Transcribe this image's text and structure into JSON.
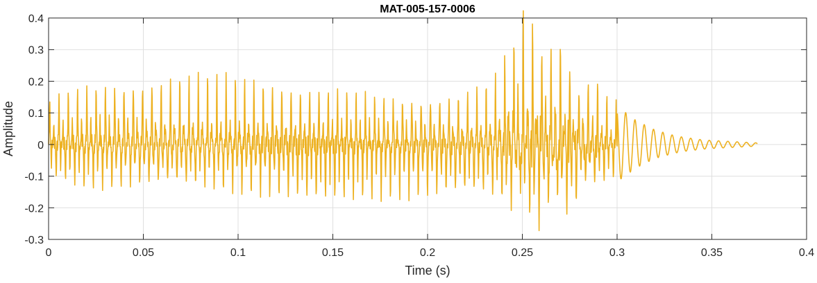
{
  "chart_data": {
    "type": "line",
    "title": "MAT-005-157-0006",
    "xlabel": "Time (s)",
    "ylabel": "Amplitude",
    "xlim": [
      0,
      0.4
    ],
    "ylim": [
      -0.3,
      0.4
    ],
    "xticks": [
      0,
      0.05,
      0.1,
      0.15,
      0.2,
      0.25,
      0.3,
      0.35,
      0.4
    ],
    "xtick_labels": [
      "0",
      "0.05",
      "0.1",
      "0.15",
      "0.2",
      "0.25",
      "0.3",
      "0.35",
      "0.4"
    ],
    "yticks": [
      -0.3,
      -0.2,
      -0.1,
      0,
      0.1,
      0.2,
      0.3,
      0.4
    ],
    "ytick_labels": [
      "-0.3",
      "-0.2",
      "-0.1",
      "0",
      "0.1",
      "0.2",
      "0.3",
      "0.4"
    ],
    "grid": true,
    "legend": "none",
    "series_color": "#EDB120",
    "signal": {
      "duration": 0.374,
      "sample_rate": 6000,
      "period": 0.0049,
      "pos_peak_envelope": [
        [
          0,
          0.14
        ],
        [
          0.01,
          0.17
        ],
        [
          0.03,
          0.19
        ],
        [
          0.065,
          0.2
        ],
        [
          0.1,
          0.19
        ],
        [
          0.15,
          0.17
        ],
        [
          0.18,
          0.15
        ],
        [
          0.2,
          0.155
        ],
        [
          0.22,
          0.16
        ],
        [
          0.235,
          0.19
        ],
        [
          0.247,
          0.36
        ],
        [
          0.26,
          0.33
        ],
        [
          0.27,
          0.28
        ],
        [
          0.28,
          0.2
        ],
        [
          0.29,
          0.17
        ],
        [
          0.3,
          0.13
        ],
        [
          0.31,
          0.08
        ],
        [
          0.32,
          0.05
        ],
        [
          0.33,
          0.03
        ],
        [
          0.345,
          0.015
        ],
        [
          0.36,
          0.01
        ],
        [
          0.374,
          0.005
        ]
      ],
      "neg_peak_envelope": [
        [
          0,
          -0.1
        ],
        [
          0.02,
          -0.14
        ],
        [
          0.06,
          -0.14
        ],
        [
          0.1,
          -0.15
        ],
        [
          0.14,
          -0.18
        ],
        [
          0.17,
          -0.16
        ],
        [
          0.2,
          -0.17
        ],
        [
          0.23,
          -0.17
        ],
        [
          0.245,
          -0.2
        ],
        [
          0.255,
          -0.23
        ],
        [
          0.27,
          -0.22
        ],
        [
          0.28,
          -0.18
        ],
        [
          0.29,
          -0.14
        ],
        [
          0.3,
          -0.11
        ],
        [
          0.31,
          -0.07
        ],
        [
          0.32,
          -0.04
        ],
        [
          0.335,
          -0.02
        ],
        [
          0.35,
          -0.012
        ],
        [
          0.374,
          -0.005
        ]
      ]
    }
  }
}
